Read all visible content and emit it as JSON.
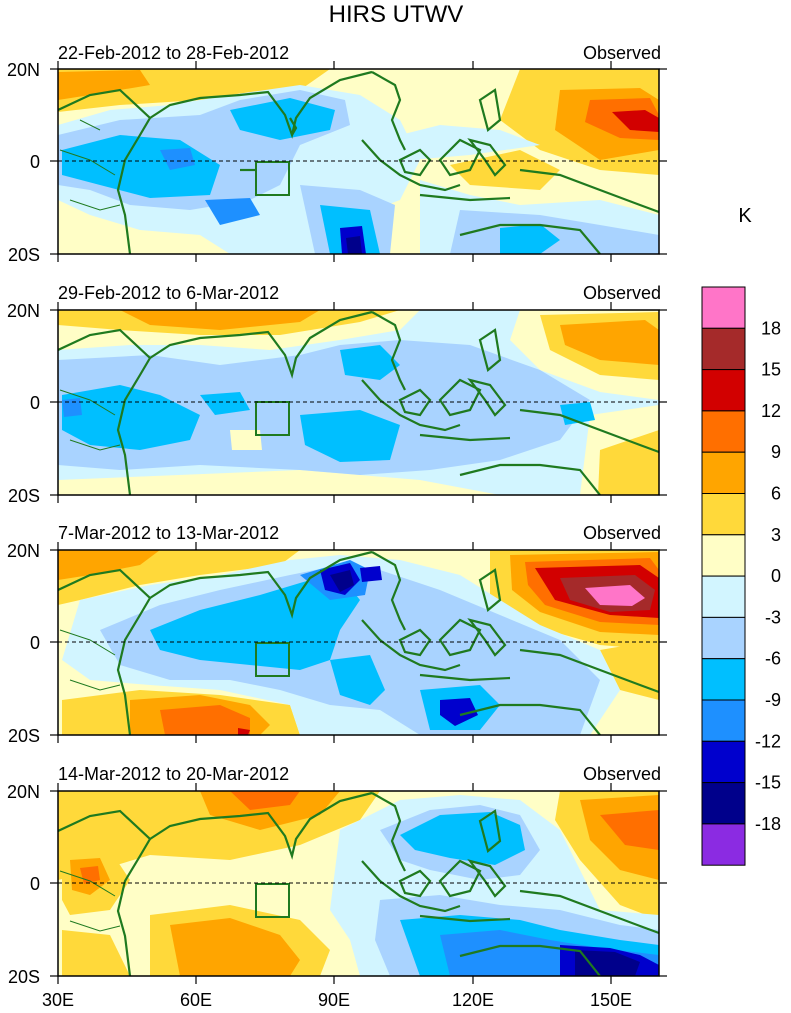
{
  "title": "HIRS UTWV",
  "panels": [
    {
      "date_range": "22-Feb-2012 to 28-Feb-2012",
      "label": "Observed"
    },
    {
      "date_range": "29-Feb-2012 to 6-Mar-2012",
      "label": "Observed"
    },
    {
      "date_range": "7-Mar-2012 to 13-Mar-2012",
      "label": "Observed"
    },
    {
      "date_range": "14-Mar-2012 to 20-Mar-2012",
      "label": "Observed"
    }
  ],
  "lat_labels": [
    "20N",
    "0",
    "20S"
  ],
  "lon_labels": [
    "30E",
    "60E",
    "90E",
    "120E",
    "150E"
  ],
  "colorbar": {
    "unit": "K",
    "tick_labels": [
      "18",
      "15",
      "12",
      "9",
      "6",
      "3",
      "0",
      "-3",
      "-6",
      "-9",
      "-12",
      "-15",
      "-18"
    ],
    "colors": [
      "#ff75c8",
      "#a52a2a",
      "#d20000",
      "#ff6f00",
      "#ffa500",
      "#ffd93a",
      "#fffec6",
      "#d2f5ff",
      "#a9d3ff",
      "#00bfff",
      "#1e90ff",
      "#0000cd",
      "#00008b",
      "#8b2be2"
    ]
  }
}
